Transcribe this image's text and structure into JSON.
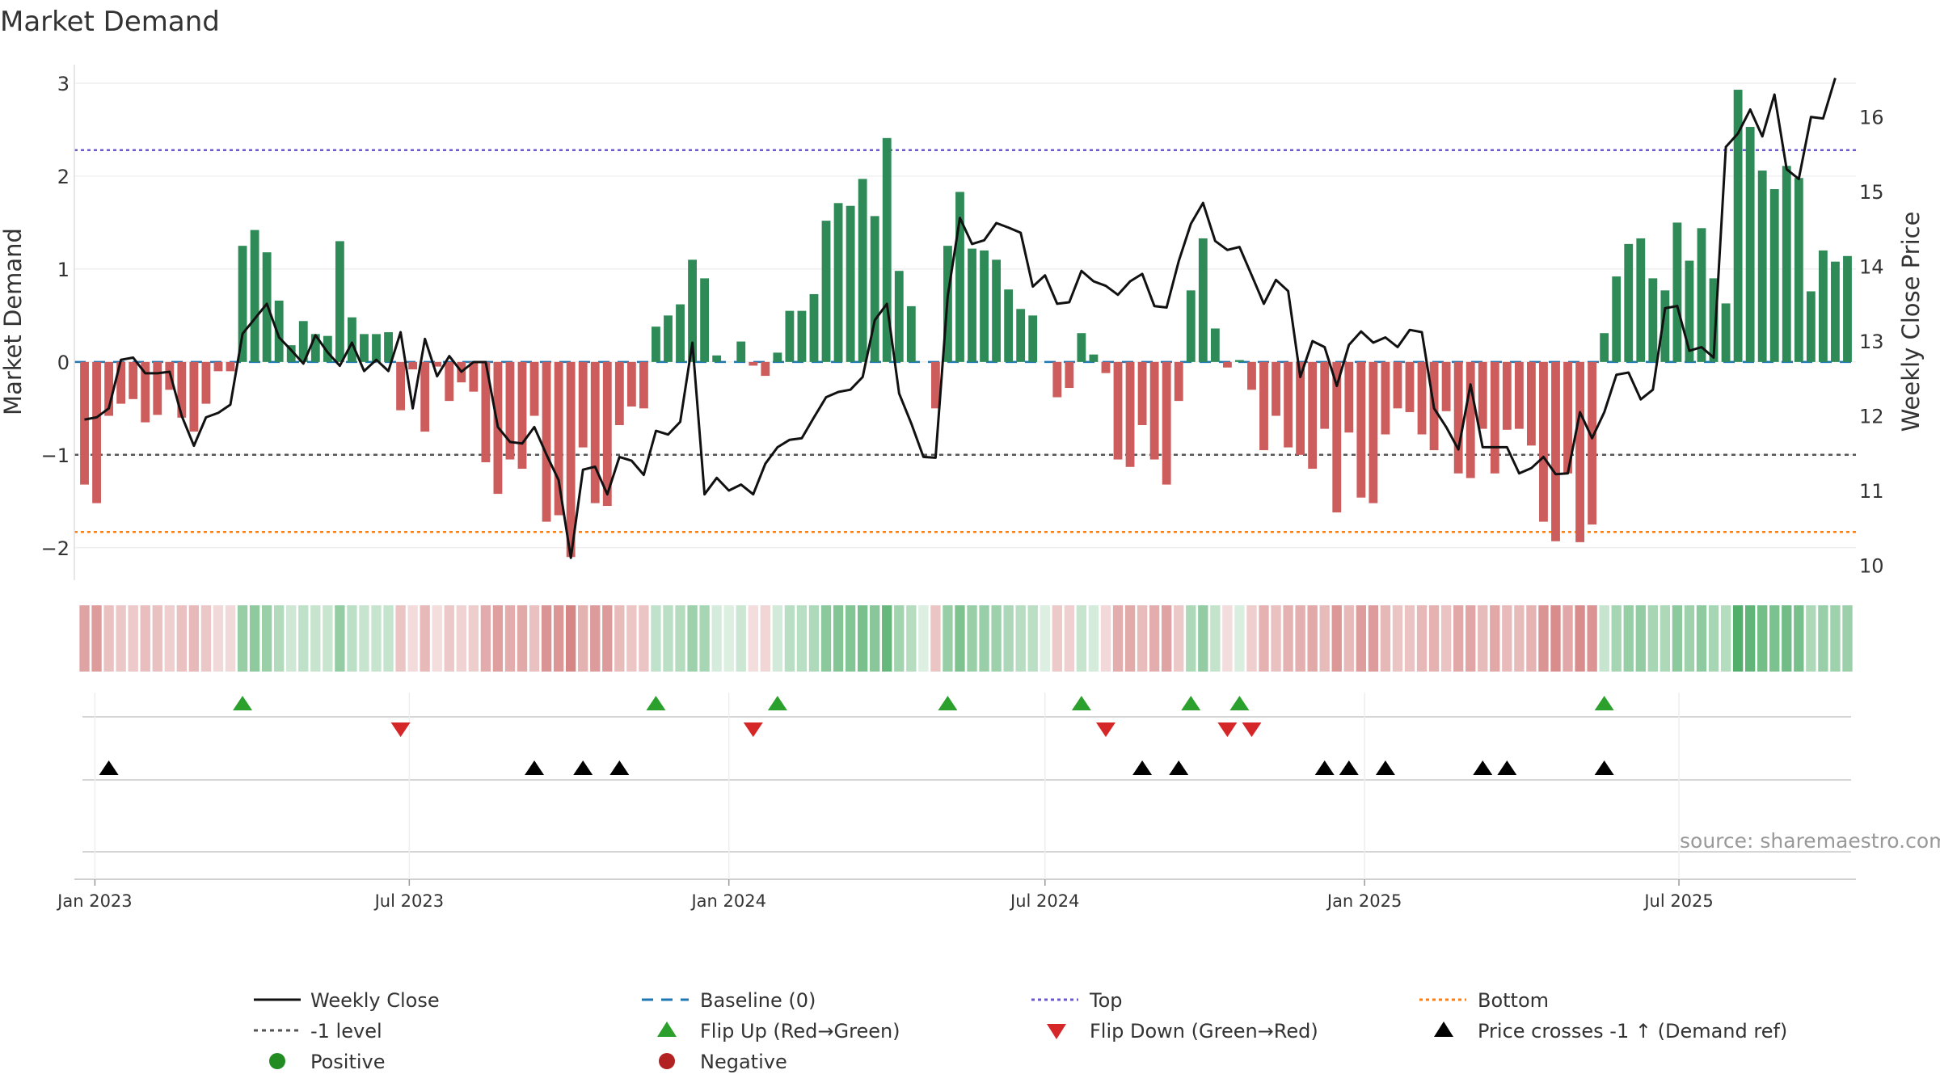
{
  "chart_data": {
    "type": "bar",
    "title": "Market Demand",
    "ylabel": "Market Demand",
    "y2label": "Weekly Close Price",
    "ylim": [
      -2.35,
      3.2
    ],
    "y2lim": [
      9.8,
      16.7
    ],
    "yticks": [
      3,
      2,
      1,
      0,
      -1,
      -2
    ],
    "yticks_labels": [
      "3",
      "2",
      "1",
      "0",
      "−1",
      "−2"
    ],
    "y2ticks": [
      16,
      15,
      14,
      13,
      12,
      11,
      10
    ],
    "y2ticks_labels": [
      "16",
      "15",
      "14",
      "13",
      "12",
      "11",
      "10"
    ],
    "start_date": "2022-12-26",
    "x_ticks": [
      {
        "date": "2023-01-01",
        "label": "Jan 2023"
      },
      {
        "date": "2023-07-01",
        "label": "Jul 2023"
      },
      {
        "date": "2024-01-01",
        "label": "Jan 2024"
      },
      {
        "date": "2024-07-01",
        "label": "Jul 2024"
      },
      {
        "date": "2025-01-01",
        "label": "Jan 2025"
      },
      {
        "date": "2025-07-01",
        "label": "Jul 2025"
      }
    ],
    "reference_lines": {
      "baseline": 0,
      "minus_one": -1,
      "top": 2.28,
      "bottom": -1.83
    },
    "demand": [
      -1.32,
      -1.52,
      -0.58,
      -0.45,
      -0.4,
      -0.65,
      -0.57,
      -0.3,
      -0.6,
      -0.75,
      -0.45,
      -0.1,
      -0.1,
      1.25,
      1.42,
      1.18,
      0.66,
      0.18,
      0.44,
      0.3,
      0.28,
      1.3,
      0.48,
      0.3,
      0.3,
      0.32,
      -0.52,
      -0.08,
      -0.75,
      -0.05,
      -0.42,
      -0.22,
      -0.32,
      -1.08,
      -1.42,
      -1.05,
      -1.15,
      -0.58,
      -1.72,
      -1.65,
      -2.1,
      -0.92,
      -1.52,
      -1.55,
      -0.68,
      -0.48,
      -0.5,
      0.38,
      0.5,
      0.62,
      1.1,
      0.9,
      0.07,
      0,
      0.22,
      -0.04,
      -0.15,
      0.1,
      0.55,
      0.55,
      0.73,
      1.52,
      1.71,
      1.68,
      1.97,
      1.57,
      2.41,
      0.98,
      0.6,
      0,
      -0.5,
      1.25,
      1.83,
      1.22,
      1.2,
      1.1,
      0.78,
      0.57,
      0.5,
      0,
      -0.38,
      -0.28,
      0.31,
      0.08,
      -0.12,
      -1.05,
      -1.13,
      -0.68,
      -1.05,
      -1.32,
      -0.42,
      0.77,
      1.33,
      0.36,
      -0.06,
      0.02,
      -0.3,
      -0.95,
      -0.58,
      -0.92,
      -1.0,
      -1.15,
      -0.72,
      -1.62,
      -0.76,
      -1.46,
      -1.52,
      -0.78,
      -0.5,
      -0.54,
      -0.78,
      -0.95,
      -0.53,
      -1.2,
      -1.25,
      -0.72,
      -1.2,
      -0.73,
      -0.72,
      -0.9,
      -1.72,
      -1.93,
      -1.2,
      -1.94,
      -1.75,
      0.31,
      0.92,
      1.27,
      1.33,
      0.9,
      0.77,
      1.5,
      1.09,
      1.44,
      0.9,
      0.63,
      2.93,
      2.53,
      2.06,
      1.86,
      2.11,
      1.98,
      0.76,
      1.2,
      1.08,
      1.14
    ],
    "close": [
      11.95,
      11.98,
      12.1,
      12.75,
      12.78,
      12.57,
      12.57,
      12.59,
      12.0,
      11.6,
      11.98,
      12.04,
      12.15,
      13.1,
      13.3,
      13.5,
      13.05,
      12.88,
      12.7,
      13.08,
      12.85,
      12.67,
      12.98,
      12.6,
      12.75,
      12.6,
      13.12,
      12.1,
      13.03,
      12.53,
      12.8,
      12.59,
      12.72,
      12.72,
      11.85,
      11.65,
      11.63,
      11.85,
      11.48,
      11.14,
      10.1,
      11.28,
      11.32,
      10.95,
      11.45,
      11.4,
      11.21,
      11.8,
      11.75,
      11.92,
      12.98,
      10.95,
      11.17,
      11.0,
      11.08,
      10.95,
      11.36,
      11.58,
      11.68,
      11.7,
      11.98,
      12.25,
      12.32,
      12.35,
      12.52,
      13.28,
      13.5,
      12.3,
      11.9,
      11.45,
      11.44,
      13.6,
      14.65,
      14.3,
      14.35,
      14.58,
      14.52,
      14.45,
      13.73,
      13.88,
      13.5,
      13.52,
      13.94,
      13.8,
      13.74,
      13.62,
      13.8,
      13.9,
      13.47,
      13.45,
      14.07,
      14.57,
      14.85,
      14.34,
      14.22,
      14.26,
      13.88,
      13.5,
      13.82,
      13.67,
      12.52,
      13.0,
      12.92,
      12.4,
      12.95,
      13.13,
      12.98,
      13.05,
      12.92,
      13.15,
      13.12,
      12.1,
      11.85,
      11.55,
      12.42,
      11.58,
      11.58,
      11.58,
      11.23,
      11.3,
      11.45,
      11.22,
      11.23,
      12.05,
      11.7,
      12.05,
      12.55,
      12.58,
      12.22,
      12.35,
      13.44,
      13.47,
      12.87,
      12.92,
      12.78,
      15.6,
      15.78,
      16.1,
      15.74,
      16.3,
      15.3,
      15.17,
      16.0,
      15.98,
      16.52
    ]
  },
  "legend": {
    "weekly_close": "Weekly Close",
    "baseline": "Baseline (0)",
    "top": "Top",
    "bottom": "Bottom",
    "minus_one": "-1 level",
    "flip_up": "Flip Up (Red→Green)",
    "flip_down": "Flip Down (Green→Red)",
    "price_cross": "Price crosses -1 ↑ (Demand ref)",
    "positive": "Positive",
    "negative": "Negative"
  },
  "source": "source: sharemaestro.com",
  "colors": {
    "positive_bar": "#2e8b57",
    "negative_bar": "#cd5c5c",
    "close_line": "#111111",
    "baseline": "#1f77b4",
    "top": "#6a5acd",
    "bottom": "#ff7f0e",
    "minus_one": "#555555",
    "flip_up": "#2ca02c",
    "flip_down": "#d62728",
    "price_cross": "#000000",
    "positive_dot": "#228b22",
    "negative_dot": "#b22222"
  }
}
